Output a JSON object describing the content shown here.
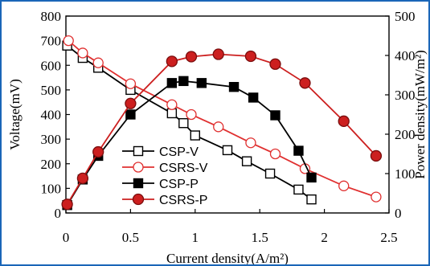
{
  "chart_data": {
    "type": "line",
    "xlabel": "Current density(A/m²)",
    "ylabel_left": "Voltage(mV)",
    "ylabel_right": "Power density(mW/m²)",
    "xlim": [
      0,
      2.5
    ],
    "ylim_left": [
      0,
      800
    ],
    "ylim_right": [
      0,
      500
    ],
    "x_ticks": [
      "0",
      "0.5",
      "1",
      "1.5",
      "2",
      "2.5"
    ],
    "y_left_ticks": [
      "0",
      "100",
      "200",
      "300",
      "400",
      "500",
      "600",
      "700",
      "800"
    ],
    "y_right_ticks": [
      "0",
      "100",
      "200",
      "300",
      "400",
      "500"
    ],
    "grid": false,
    "legend_position": "lower-left",
    "series": [
      {
        "name": "CSP-V",
        "axis": "left",
        "marker": "square-open",
        "color": "#000000",
        "x": [
          0.01,
          0.13,
          0.25,
          0.5,
          0.82,
          0.91,
          1.0,
          1.25,
          1.4,
          1.58,
          1.8,
          1.9
        ],
        "y": [
          680,
          630,
          590,
          500,
          405,
          365,
          315,
          255,
          210,
          160,
          95,
          55
        ]
      },
      {
        "name": "CSRS-V",
        "axis": "left",
        "marker": "circle-open",
        "color": "#e03030",
        "x": [
          0.02,
          0.13,
          0.25,
          0.5,
          0.82,
          0.97,
          1.18,
          1.43,
          1.62,
          1.85,
          2.15,
          2.4
        ],
        "y": [
          700,
          650,
          610,
          525,
          440,
          400,
          350,
          285,
          240,
          180,
          110,
          65
        ]
      },
      {
        "name": "CSP-P",
        "axis": "right",
        "marker": "square-filled",
        "color": "#000000",
        "x": [
          0.01,
          0.13,
          0.25,
          0.5,
          0.82,
          0.91,
          1.05,
          1.3,
          1.45,
          1.62,
          1.8,
          1.9
        ],
        "y": [
          20,
          85,
          145,
          250,
          330,
          335,
          330,
          320,
          293,
          248,
          158,
          90
        ]
      },
      {
        "name": "CSRS-P",
        "axis": "right",
        "marker": "circle-filled",
        "color": "#cc1f1f",
        "x": [
          0.01,
          0.13,
          0.25,
          0.5,
          0.82,
          0.97,
          1.18,
          1.43,
          1.62,
          1.85,
          2.15,
          2.4
        ],
        "y": [
          22,
          88,
          155,
          278,
          385,
          397,
          403,
          398,
          378,
          330,
          233,
          145
        ]
      }
    ]
  }
}
